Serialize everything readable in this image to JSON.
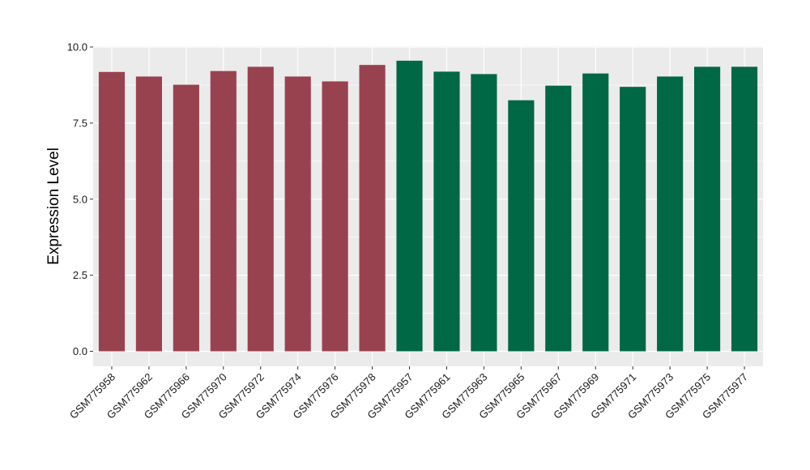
{
  "chart_data": {
    "type": "bar",
    "title": "",
    "xlabel": "",
    "ylabel": "Expression Level",
    "ylim": [
      0,
      10
    ],
    "yticks": [
      "0.0",
      "2.5",
      "5.0",
      "7.5",
      "10.0"
    ],
    "ytick_values": [
      0,
      2.5,
      5,
      7.5,
      10
    ],
    "grid": true,
    "legend": "none",
    "categories": [
      "GSM775958",
      "GSM775962",
      "GSM775966",
      "GSM775970",
      "GSM775972",
      "GSM775974",
      "GSM775976",
      "GSM775978",
      "GSM775957",
      "GSM775961",
      "GSM775963",
      "GSM775965",
      "GSM775967",
      "GSM775969",
      "GSM775971",
      "GSM775973",
      "GSM775975",
      "GSM775977"
    ],
    "values": [
      9.18,
      9.03,
      8.76,
      9.21,
      9.35,
      9.03,
      8.87,
      9.41,
      9.55,
      9.19,
      9.11,
      8.25,
      8.73,
      9.13,
      8.69,
      9.03,
      9.35,
      9.35
    ],
    "bar_colors": [
      "#99424f",
      "#99424f",
      "#99424f",
      "#99424f",
      "#99424f",
      "#99424f",
      "#99424f",
      "#99424f",
      "#006845",
      "#006845",
      "#006845",
      "#006845",
      "#006845",
      "#006845",
      "#006845",
      "#006845",
      "#006845",
      "#006845"
    ],
    "panel_background": "#ebebeb",
    "grid_color": "#ffffff"
  }
}
